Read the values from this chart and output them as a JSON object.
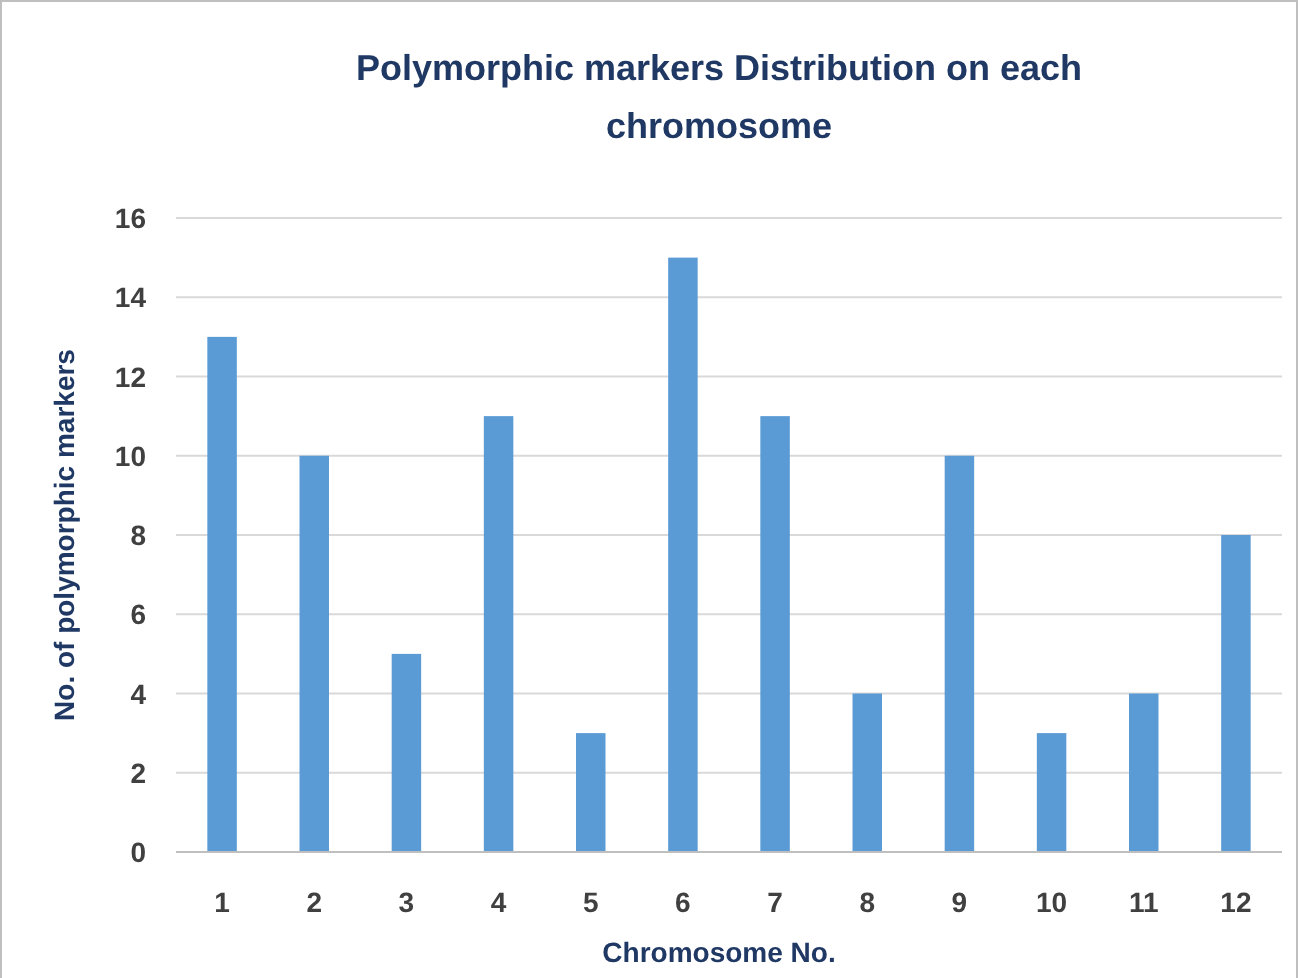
{
  "chart_data": {
    "type": "bar",
    "title": "Polymorphic markers Distribution on each chromosome",
    "xlabel": "Chromosome No.",
    "ylabel": "No. of polymorphic markers",
    "categories": [
      "1",
      "2",
      "3",
      "4",
      "5",
      "6",
      "7",
      "8",
      "9",
      "10",
      "11",
      "12"
    ],
    "values": [
      13,
      10,
      5,
      11,
      3,
      15,
      11,
      4,
      10,
      3,
      4,
      8
    ],
    "color": "#5b9bd5",
    "ylim": [
      0,
      16
    ],
    "yticks": [
      0,
      2,
      4,
      6,
      8,
      10,
      12,
      14,
      16
    ],
    "grid": "y"
  }
}
